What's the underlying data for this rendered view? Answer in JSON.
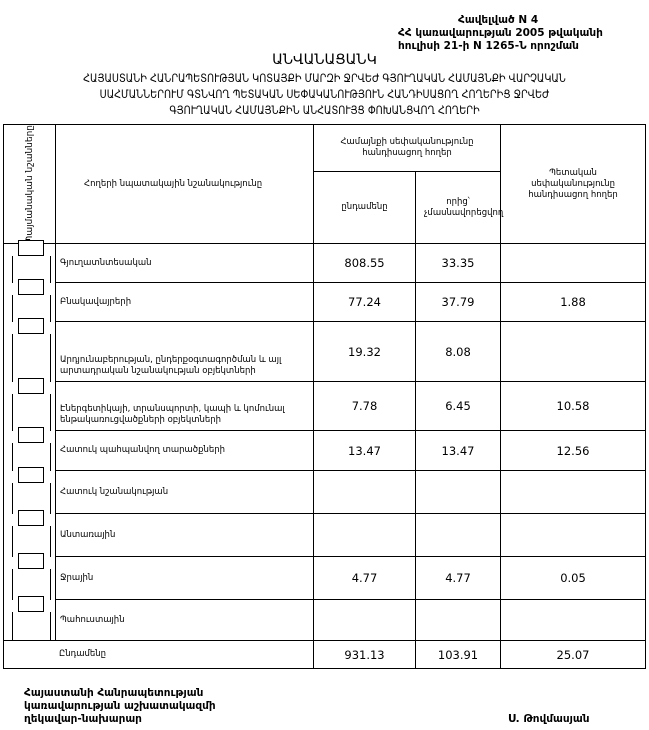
{
  "annex": {
    "line1": "Հավելված N 4",
    "line2": "ՀՀ կառավարության 2005 թվականի",
    "line3": "հուլիսի 21-ի N 1265-Ն որոշման"
  },
  "title": "ԱՆՎԱՆԱՑԱՆԿ",
  "subtitle": [
    "ՀԱՅԱՍՏԱՆԻ ՀԱՆՐԱՊԵՏՈՒԹՅԱՆ ԿՈՏԱՅՔԻ ՄԱՐԶԻ ՋՐՎԵԺ ԳՅՈՒՂԱԿԱՆ ՀԱՄԱՅՆՔԻ ՎԱՐՉԱԿԱՆ",
    "ՍԱՀՄԱՆՆԵՐՈՒՄ ԳՏՆՎՈՂ ՊԵՏԱԿԱՆ ՍԵՓԱԿԱՆՈՒԹՅՈՒՆ ՀԱՆԴԻՍԱՑՈՂ ՀՈՂԵՐԻՑ ՋՐՎԵԺ",
    "ԳՅՈՒՂԱԿԱՆ ՀԱՄԱՅՆՔԻՆ ԱՆՀԱՏՈՒՅՑ ՓՈԽԱՆՑՎՈՂ ՀՈՂԵՐԻ"
  ],
  "table": {
    "headers": {
      "symbols": "Պայմանական նշանները",
      "purpose": "Հողերի նպատակային նշանակությունը",
      "community": "Համայնքի սեփականությունը հանդիսացող հողեր",
      "total": "ընդամենը",
      "non_private": "որից՝ չմասնավորեցվող",
      "state": "Պետական սեփականությունը հանդիսացող հողեր"
    },
    "rows": [
      {
        "purpose": "Գյուղատնտեսական",
        "total": "808.55",
        "non_private": "33.35",
        "state": ""
      },
      {
        "purpose": "Բնակավայրերի",
        "total": "77.24",
        "non_private": "37.79",
        "state": "1.88"
      },
      {
        "purpose": "Արդյունաբերության, ընդերքօգտագործման և այլ արտադրական նշանակության օբյեկտների",
        "total": "19.32",
        "non_private": "8.08",
        "state": ""
      },
      {
        "purpose": "Էներգետիկայի, տրանսպորտի, կապի և կոմունալ ենթակառուցվածքների օբյեկտների",
        "total": "7.78",
        "non_private": "6.45",
        "state": "10.58"
      },
      {
        "purpose": "Հատուկ պահպանվող տարածքների",
        "total": "13.47",
        "non_private": "13.47",
        "state": "12.56"
      },
      {
        "purpose": "Հատուկ նշանակության",
        "total": "",
        "non_private": "",
        "state": ""
      },
      {
        "purpose": "Անտառային",
        "total": "",
        "non_private": "",
        "state": ""
      },
      {
        "purpose": "Ջրային",
        "total": "4.77",
        "non_private": "4.77",
        "state": "0.05"
      },
      {
        "purpose": "Պահուստային",
        "total": "",
        "non_private": "",
        "state": ""
      }
    ],
    "totals": {
      "label": "Ընդամենը",
      "total": "931.13",
      "non_private": "103.91",
      "state": "25.07"
    }
  },
  "footer": {
    "line1": "Հայաստանի Հանրապետության",
    "line2": "կառավարության աշխատակազմի",
    "line3": "ղեկավար-նախարար",
    "signatory": "Ս. Թովմասյան"
  }
}
